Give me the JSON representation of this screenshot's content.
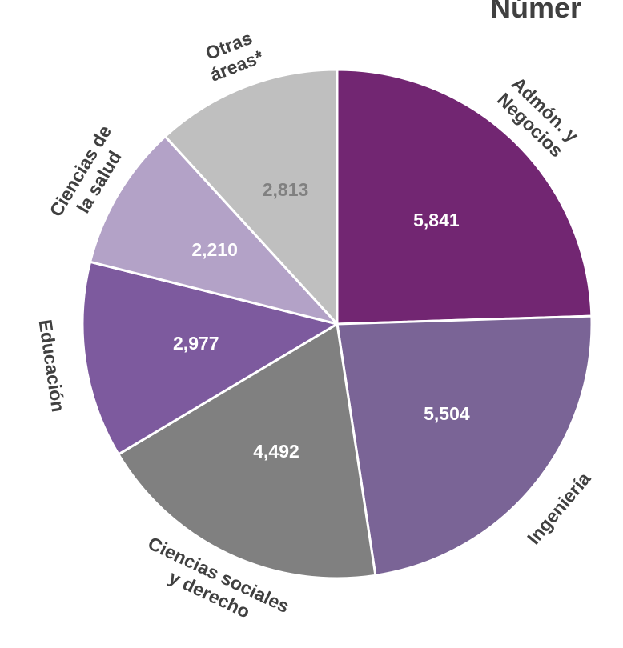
{
  "chart_data": {
    "type": "pie",
    "title": "Númer",
    "start_angle_deg": 0,
    "direction": "clockwise",
    "slices": [
      {
        "label": "Admón. y Negocios",
        "label_lines": [
          "Admón. y",
          "Negocios"
        ],
        "value": 5841,
        "value_text": "5,841",
        "color": "#722672",
        "value_color": "#ffffff"
      },
      {
        "label": "Ingeniería",
        "label_lines": [
          "Ingeniería"
        ],
        "value": 5504,
        "value_text": "5,504",
        "color": "#7a6496",
        "value_color": "#ffffff"
      },
      {
        "label": "Ciencias sociales y derecho",
        "label_lines": [
          "Ciencias sociales",
          "y derecho"
        ],
        "value": 4492,
        "value_text": "4,492",
        "color": "#808080",
        "value_color": "#ffffff"
      },
      {
        "label": "Educación",
        "label_lines": [
          "Educación"
        ],
        "value": 2977,
        "value_text": "2,977",
        "color": "#7d5a9e",
        "value_color": "#ffffff"
      },
      {
        "label": "Ciencias de la salud",
        "label_lines": [
          "Ciencias de",
          "la salud"
        ],
        "value": 2210,
        "value_text": "2,210",
        "color": "#b3a2c7",
        "value_color": "#ffffff"
      },
      {
        "label": "Otras áreas*",
        "label_lines": [
          "Otras",
          "áreas*"
        ],
        "value": 2813,
        "value_text": "2,813",
        "color": "#bfbfbf",
        "value_color": "#808080"
      }
    ]
  }
}
